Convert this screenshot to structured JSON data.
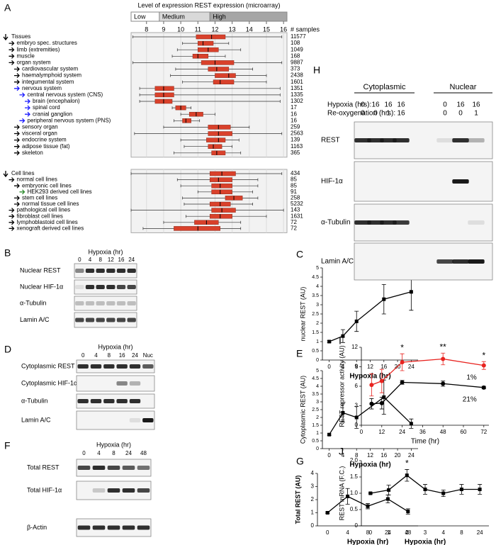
{
  "chart_data": [
    {
      "type": "boxplot",
      "panel": "A",
      "title": "Level of expression REST expression (microarray)",
      "ranges": [
        {
          "label": "Low",
          "from": 7.1,
          "to": 8.75
        },
        {
          "label": "Medium",
          "from": 8.75,
          "to": 11.7
        },
        {
          "label": "High",
          "from": 11.7,
          "to": 16.2
        }
      ],
      "samples_label": "# samples",
      "xlim": [
        7.1,
        16.2
      ],
      "xticks": [
        8,
        9,
        10,
        11,
        12,
        13,
        14,
        15,
        16
      ],
      "groups": [
        {
          "rows": [
            {
              "label": "Tissues",
              "samples": 11577,
              "color": "#000000",
              "box": [
                7.2,
                10.9,
                11.8,
                12.6,
                15.9
              ]
            },
            {
              "label": "embryo spec. structures",
              "samples": 108,
              "color": "#000000",
              "box": [
                10.1,
                11.0,
                11.3,
                11.9,
                12.8
              ]
            },
            {
              "label": "limb (extremities)",
              "samples": 1049,
              "color": "#000000",
              "box": [
                9.8,
                11.0,
                11.6,
                12.2,
                13.5
              ]
            },
            {
              "label": "muscle",
              "samples": 168,
              "color": "#000000",
              "box": [
                9.5,
                10.7,
                11.0,
                11.6,
                12.6
              ]
            },
            {
              "label": "organ system",
              "samples": 9887,
              "color": "#000000",
              "box": [
                7.2,
                11.2,
                12.0,
                13.1,
                15.9
              ]
            },
            {
              "label": "cardiovascular system",
              "samples": 373,
              "color": "#000000",
              "box": [
                9.7,
                11.6,
                12.1,
                12.8,
                14.2
              ]
            },
            {
              "label": "haemalymphoid system",
              "samples": 2438,
              "color": "#000000",
              "box": [
                9.4,
                12.0,
                12.8,
                13.2,
                15.0
              ]
            },
            {
              "label": "integumental system",
              "samples": 1601,
              "color": "#000000",
              "box": [
                10.1,
                11.9,
                12.3,
                13.1,
                15.0
              ]
            },
            {
              "label": "nervous system",
              "samples": 1351,
              "color": "#1a1aff",
              "box": [
                7.6,
                8.5,
                9.0,
                9.6,
                15.8
              ]
            },
            {
              "label": "central nervous system (CNS)",
              "samples": 1335,
              "color": "#1a1aff",
              "box": [
                7.6,
                8.5,
                9.0,
                9.6,
                15.8
              ]
            },
            {
              "label": "brain (encephalon)",
              "samples": 1302,
              "color": "#1a1aff",
              "box": [
                7.6,
                8.5,
                9.0,
                9.5,
                15.8
              ]
            },
            {
              "label": "spinal cord",
              "samples": 17,
              "color": "#1a1aff",
              "box": [
                9.5,
                9.7,
                10.0,
                10.3,
                10.6
              ]
            },
            {
              "label": "cranial ganglion",
              "samples": 16,
              "color": "#1a1aff",
              "box": [
                10.0,
                10.5,
                10.9,
                11.3,
                12.0
              ]
            },
            {
              "label": "peripheral nervous system (PNS)",
              "samples": 16,
              "color": "#1a1aff",
              "box": [
                9.6,
                10.1,
                10.3,
                10.6,
                11.1
              ]
            },
            {
              "label": "sensory organ",
              "samples": 259,
              "color": "#000000",
              "box": [
                9.0,
                11.6,
                12.2,
                12.9,
                14.0
              ]
            },
            {
              "label": "visceral organ",
              "samples": 2563,
              "color": "#000000",
              "box": [
                7.3,
                11.6,
                12.2,
                13.0,
                15.9
              ]
            },
            {
              "label": "endocrine system",
              "samples": 139,
              "color": "#000000",
              "box": [
                10.0,
                11.5,
                12.2,
                12.6,
                13.4
              ]
            },
            {
              "label": "adipose tissue (fat)",
              "samples": 1163,
              "color": "#000000",
              "box": [
                10.2,
                11.6,
                11.9,
                12.4,
                13.0
              ]
            },
            {
              "label": "skeleton",
              "samples": 365,
              "color": "#000000",
              "box": [
                9.6,
                11.8,
                12.1,
                12.6,
                13.5
              ]
            }
          ]
        },
        {
          "rows": [
            {
              "label": "Cell lines",
              "samples": 434,
              "color": "#000000",
              "box": [
                7.1,
                11.7,
                12.4,
                13.2,
                15.9
              ]
            },
            {
              "label": "normal cell lines",
              "samples": 85,
              "color": "#000000",
              "box": [
                9.8,
                11.7,
                12.2,
                13.0,
                14.5
              ]
            },
            {
              "label": "embryonic cell lines",
              "samples": 85,
              "color": "#000000",
              "box": [
                10.0,
                11.8,
                12.3,
                13.0,
                14.5
              ]
            },
            {
              "label": "HEK293 derived cell lines",
              "samples": 91,
              "color": "#2e8b2e",
              "box": [
                11.0,
                11.8,
                12.3,
                13.0,
                14.2
              ]
            },
            {
              "label": "stem cell lines",
              "samples": 258,
              "color": "#000000",
              "box": [
                10.1,
                12.6,
                13.1,
                13.6,
                14.5
              ]
            },
            {
              "label": "normal tissue cell lines",
              "samples": 5232,
              "color": "#000000",
              "box": [
                10.2,
                11.7,
                12.3,
                12.9,
                14.2
              ]
            },
            {
              "label": "pathological cell lines",
              "samples": 143,
              "color": "#000000",
              "box": [
                7.1,
                11.8,
                12.4,
                13.2,
                16.0
              ]
            },
            {
              "label": "fibroblast cell lines",
              "samples": 1631,
              "color": "#000000",
              "box": [
                10.3,
                11.7,
                12.3,
                13.0,
                15.0
              ]
            },
            {
              "label": "lymphoblastoid cell lines",
              "samples": 72,
              "color": "#000000",
              "box": [
                9.0,
                10.8,
                11.5,
                12.2,
                13.5
              ]
            },
            {
              "label": "xenograft derived cell lines",
              "samples": 72,
              "color": "#000000",
              "box": [
                7.8,
                9.6,
                11.0,
                12.3,
                13.5
              ]
            }
          ]
        }
      ]
    },
    {
      "type": "line",
      "panel": "C",
      "xlabel": "Hypoxia (hr)",
      "ylabel": "nuclear REST (AU)",
      "x": [
        0,
        4,
        8,
        16,
        24
      ],
      "xlim": [
        -2,
        26
      ],
      "xticks": [
        0,
        4,
        8,
        12,
        16,
        20,
        24
      ],
      "ylim": [
        0,
        5
      ],
      "yticks": [
        0,
        0.5,
        1,
        1.5,
        2,
        2.5,
        3,
        3.5,
        4,
        4.5,
        5
      ],
      "series": [
        {
          "color": "#000000",
          "marker": "square",
          "values": [
            1,
            1.3,
            2.1,
            3.3,
            3.7
          ],
          "errors": [
            0.05,
            0.35,
            0.55,
            0.8,
            1.0
          ]
        }
      ]
    },
    {
      "type": "line",
      "panel": "E",
      "xlabel": "Hypoxia (hr)",
      "ylabel": "Cytoplasmic REST (AU)",
      "x": [
        0,
        4,
        8,
        16,
        24
      ],
      "xlim": [
        -2,
        26
      ],
      "xticks": [
        0,
        4,
        8,
        12,
        16,
        20,
        24
      ],
      "ylim": [
        0,
        5
      ],
      "yticks": [
        0,
        0.5,
        1,
        1.5,
        2,
        2.5,
        3,
        3.5,
        4,
        4.5,
        5
      ],
      "series": [
        {
          "color": "#000000",
          "marker": "square",
          "values": [
            0.9,
            2.3,
            2.0,
            3.3,
            1.6
          ],
          "errors": [
            0.05,
            0.6,
            0.7,
            1.1,
            0.3
          ]
        }
      ]
    },
    {
      "type": "line",
      "panel": "G",
      "xlabel": "Hypoxia (hr)",
      "ylabel": "Total REST (AU)",
      "categories": [
        "0",
        "4",
        "8",
        "24",
        "48"
      ],
      "ylim": [
        0,
        4
      ],
      "yticks": [
        0,
        1,
        2,
        3,
        4
      ],
      "series": [
        {
          "color": "#000000",
          "marker": "square",
          "values": [
            1,
            2.25,
            1.5,
            2.05,
            1.1
          ],
          "errors": [
            0.05,
            0.6,
            0.2,
            0.3,
            0.2
          ]
        }
      ]
    },
    {
      "type": "line",
      "panel": "I",
      "xlabel": "Time (hr)",
      "ylabel": "REST repressor activity (AU)",
      "x": [
        6,
        12,
        24,
        48,
        72
      ],
      "xlim": [
        0,
        75
      ],
      "xticks": [
        0,
        12,
        24,
        36,
        48,
        60,
        72
      ],
      "ylim": [
        0,
        12
      ],
      "yticks": [
        0,
        3,
        6,
        9,
        12
      ],
      "series": [
        {
          "name": "1%",
          "color": "#e8231f",
          "marker": "circle",
          "values": [
            6.2,
            6.8,
            9.7,
            10.2,
            9.2
          ],
          "errors": [
            1.7,
            1.8,
            1.3,
            0.9,
            0.6
          ]
        },
        {
          "name": "21%",
          "color": "#000000",
          "marker": "circle",
          "values": [
            3.3,
            3.4,
            6.6,
            6.4,
            5.8
          ],
          "errors": [
            0.8,
            0.9,
            0.3,
            0.4,
            0.2
          ]
        }
      ],
      "annotations": [
        {
          "text": "*",
          "x": 24
        },
        {
          "text": "**",
          "x": 48
        },
        {
          "text": "*",
          "x": 72
        }
      ]
    },
    {
      "type": "line",
      "panel": "J",
      "xlabel": "Hypoxia (hr)",
      "ylabel": "REST mRNA (F.C.)",
      "categories": [
        "0",
        "1",
        "2",
        "3",
        "4",
        "8",
        "24"
      ],
      "ylim": [
        0,
        2
      ],
      "yticks": [
        0,
        0.5,
        {
          "value": 1,
          "label": "1.0"
        },
        1.5,
        {
          "value": 2,
          "label": "2.0"
        }
      ],
      "series": [
        {
          "color": "#000000",
          "marker": "square",
          "values": [
            1.0,
            1.1,
            1.55,
            1.12,
            1.0,
            1.12,
            1.12
          ],
          "errors": [
            0.02,
            0.15,
            0.18,
            0.15,
            0.1,
            0.15,
            0.15
          ]
        }
      ],
      "annotations": [
        {
          "text": "*",
          "x": "2"
        }
      ]
    }
  ],
  "blots": [
    {
      "panel": "B",
      "title": "Hypoxia (hr)",
      "lanes": [
        "0",
        "4",
        "8",
        "12",
        "16",
        "24"
      ],
      "rows": [
        "Nuclear REST",
        "Nuclear HIF-1α",
        "α-Tubulin",
        "Lamin A/C"
      ]
    },
    {
      "panel": "D",
      "title": "Hypoxia (hr)",
      "lanes": [
        "0",
        "4",
        "8",
        "16",
        "24",
        "Nuc"
      ],
      "rows": [
        "Cytoplasmic REST",
        "Cytoplasmic HIF-1α",
        "α-Tubulin",
        "Lamin A/C"
      ]
    },
    {
      "panel": "F",
      "title": "Hypoxia (hr)",
      "lanes": [
        "0",
        "4",
        "8",
        "24",
        "48"
      ],
      "rows": [
        "Total REST",
        "Total HIF-1α",
        "β-Actin"
      ]
    },
    {
      "panel": "H",
      "groups": [
        "Cytoplasmic",
        "Nuclear"
      ],
      "conditions": [
        {
          "label": "Hypoxia (hrs):",
          "values": [
            0,
            16,
            16,
            16,
            0,
            16,
            16
          ]
        },
        {
          "label": "Re-oxygenation (hrs):",
          "values": [
            0,
            0,
            1,
            16,
            0,
            0,
            1
          ]
        }
      ],
      "rows": [
        "REST",
        "HIF-1α",
        "α-Tubulin",
        "Lamin A/C"
      ]
    }
  ]
}
